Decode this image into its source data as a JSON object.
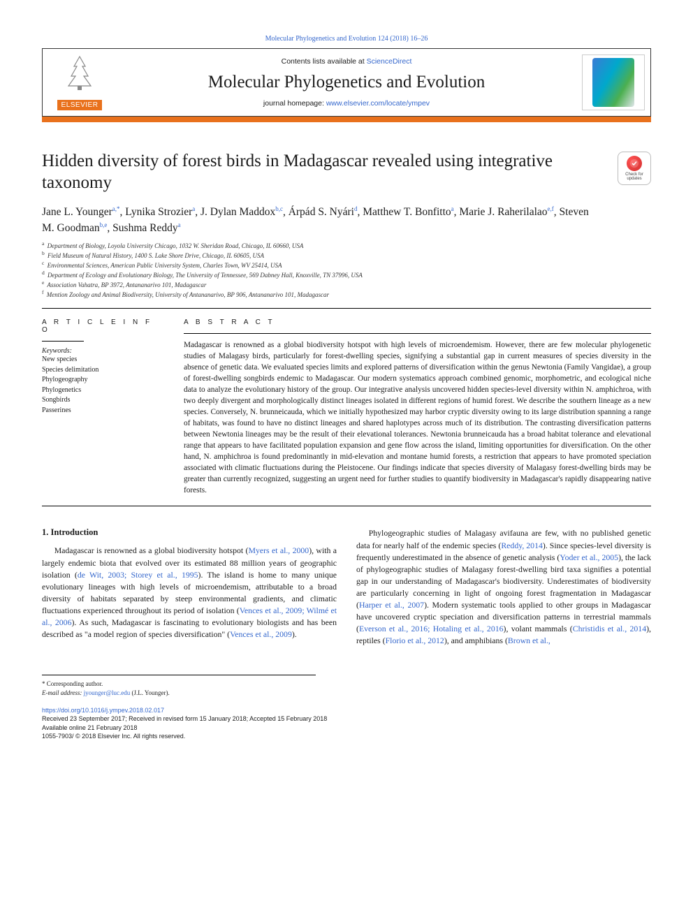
{
  "top_citation_link": "Molecular Phylogenetics and Evolution 124 (2018) 16–26",
  "masthead": {
    "contents_prefix": "Contents lists available at ",
    "contents_link": "ScienceDirect",
    "journal_name": "Molecular Phylogenetics and Evolution",
    "homepage_prefix": "journal homepage: ",
    "homepage_link": "www.elsevier.com/locate/ympev",
    "publisher_word": "ELSEVIER"
  },
  "colors": {
    "accent": "#e9711c",
    "link": "#3366cc",
    "text": "#1a1a1a"
  },
  "check_badge": {
    "line1": "Check for",
    "line2": "updates"
  },
  "article": {
    "title": "Hidden diversity of forest birds in Madagascar revealed using integrative taxonomy",
    "authors_html": "Jane L. Younger<sup>a,*</sup>, Lynika Strozier<sup>a</sup>, J. Dylan Maddox<sup>b,c</sup>, Árpád S. Nyári<sup>d</sup>, Matthew T. Bonfitto<sup>a</sup>, Marie J. Raherilalao<sup>e,f</sup>, Steven M. Goodman<sup>b,e</sup>, Sushma Reddy<sup>a</sup>",
    "affiliations": [
      {
        "key": "a",
        "text": "Department of Biology, Loyola University Chicago, 1032 W. Sheridan Road, Chicago, IL 60660, USA"
      },
      {
        "key": "b",
        "text": "Field Museum of Natural History, 1400 S. Lake Shore Drive, Chicago, IL 60605, USA"
      },
      {
        "key": "c",
        "text": "Environmental Sciences, American Public University System, Charles Town, WV 25414, USA"
      },
      {
        "key": "d",
        "text": "Department of Ecology and Evolutionary Biology, The University of Tennessee, 569 Dabney Hall, Knoxville, TN 37996, USA"
      },
      {
        "key": "e",
        "text": "Association Vahatra, BP 3972, Antananarivo 101, Madagascar"
      },
      {
        "key": "f",
        "text": "Mention Zoology and Animal Biodiversity, University of Antananarivo, BP 906, Antananarivo 101, Madagascar"
      }
    ]
  },
  "info": {
    "heading": "A R T I C L E  I N F O",
    "keywords_label": "Keywords:",
    "keywords": [
      "New species",
      "Species delimitation",
      "Phylogeography",
      "Phylogenetics",
      "Songbirds",
      "Passerines"
    ]
  },
  "abstract": {
    "heading": "A B S T R A C T",
    "text": "Madagascar is renowned as a global biodiversity hotspot with high levels of microendemism. However, there are few molecular phylogenetic studies of Malagasy birds, particularly for forest-dwelling species, signifying a substantial gap in current measures of species diversity in the absence of genetic data. We evaluated species limits and explored patterns of diversification within the genus Newtonia (Family Vangidae), a group of forest-dwelling songbirds endemic to Madagascar. Our modern systematics approach combined genomic, morphometric, and ecological niche data to analyze the evolutionary history of the group. Our integrative analysis uncovered hidden species-level diversity within N. amphichroa, with two deeply divergent and morphologically distinct lineages isolated in different regions of humid forest. We describe the southern lineage as a new species. Conversely, N. brunneicauda, which we initially hypothesized may harbor cryptic diversity owing to its large distribution spanning a range of habitats, was found to have no distinct lineages and shared haplotypes across much of its distribution. The contrasting diversification patterns between Newtonia lineages may be the result of their elevational tolerances. Newtonia brunneicauda has a broad habitat tolerance and elevational range that appears to have facilitated population expansion and gene flow across the island, limiting opportunities for diversification. On the other hand, N. amphichroa is found predominantly in mid-elevation and montane humid forests, a restriction that appears to have promoted speciation associated with climatic fluctuations during the Pleistocene. Our findings indicate that species diversity of Malagasy forest-dwelling birds may be greater than currently recognized, suggesting an urgent need for further studies to quantify biodiversity in Madagascar's rapidly disappearing native forests."
  },
  "body": {
    "section_heading": "1. Introduction",
    "para1_html": "Madagascar is renowned as a global biodiversity hotspot (<a href='#'>Myers et al., 2000</a>), with a largely endemic biota that evolved over its estimated 88 million years of geographic isolation (<a href='#'>de Wit, 2003; Storey et al., 1995</a>). The island is home to many unique evolutionary lineages with high levels of microendemism, attributable to a broad diversity of habitats separated by steep environmental gradients, and climatic fluctuations experienced throughout its period of isolation (<a href='#'>Vences et al., 2009; Wilmé et al., 2006</a>). As such, Madagascar is fascinating to evolutionary biologists and has been described as \"a model region of species diversification\" (<a href='#'>Vences et al., 2009</a>).",
    "para2_html": "Phylogeographic studies of Malagasy avifauna are few, with no published genetic data for nearly half of the endemic species (<a href='#'>Reddy, 2014</a>). Since species-level diversity is frequently underestimated in the absence of genetic analysis (<a href='#'>Yoder et al., 2005</a>), the lack of phylogeographic studies of Malagasy forest-dwelling bird taxa signifies a potential gap in our understanding of Madagascar's biodiversity. Underestimates of biodiversity are particularly concerning in light of ongoing forest fragmentation in Madagascar (<a href='#'>Harper et al., 2007</a>). Modern systematic tools applied to other groups in Madagascar have uncovered cryptic speciation and diversification patterns in terrestrial mammals (<a href='#'>Everson et al., 2016; Hotaling et al., 2016</a>), volant mammals (<a href='#'>Christidis et al., 2014</a>), reptiles (<a href='#'>Florio et al., 2012</a>), and amphibians (<a href='#'>Brown et al.,</a>"
  },
  "footnotes": {
    "corresponding": "* Corresponding author.",
    "email_label": "E-mail address: ",
    "email": "jyounger@luc.edu",
    "email_suffix": " (J.L. Younger)."
  },
  "bottom": {
    "doi": "https://doi.org/10.1016/j.ympev.2018.02.017",
    "received": "Received 23 September 2017; Received in revised form 15 January 2018; Accepted 15 February 2018",
    "available": "Available online 21 February 2018",
    "copyright": "1055-7903/ © 2018 Elsevier Inc. All rights reserved."
  }
}
